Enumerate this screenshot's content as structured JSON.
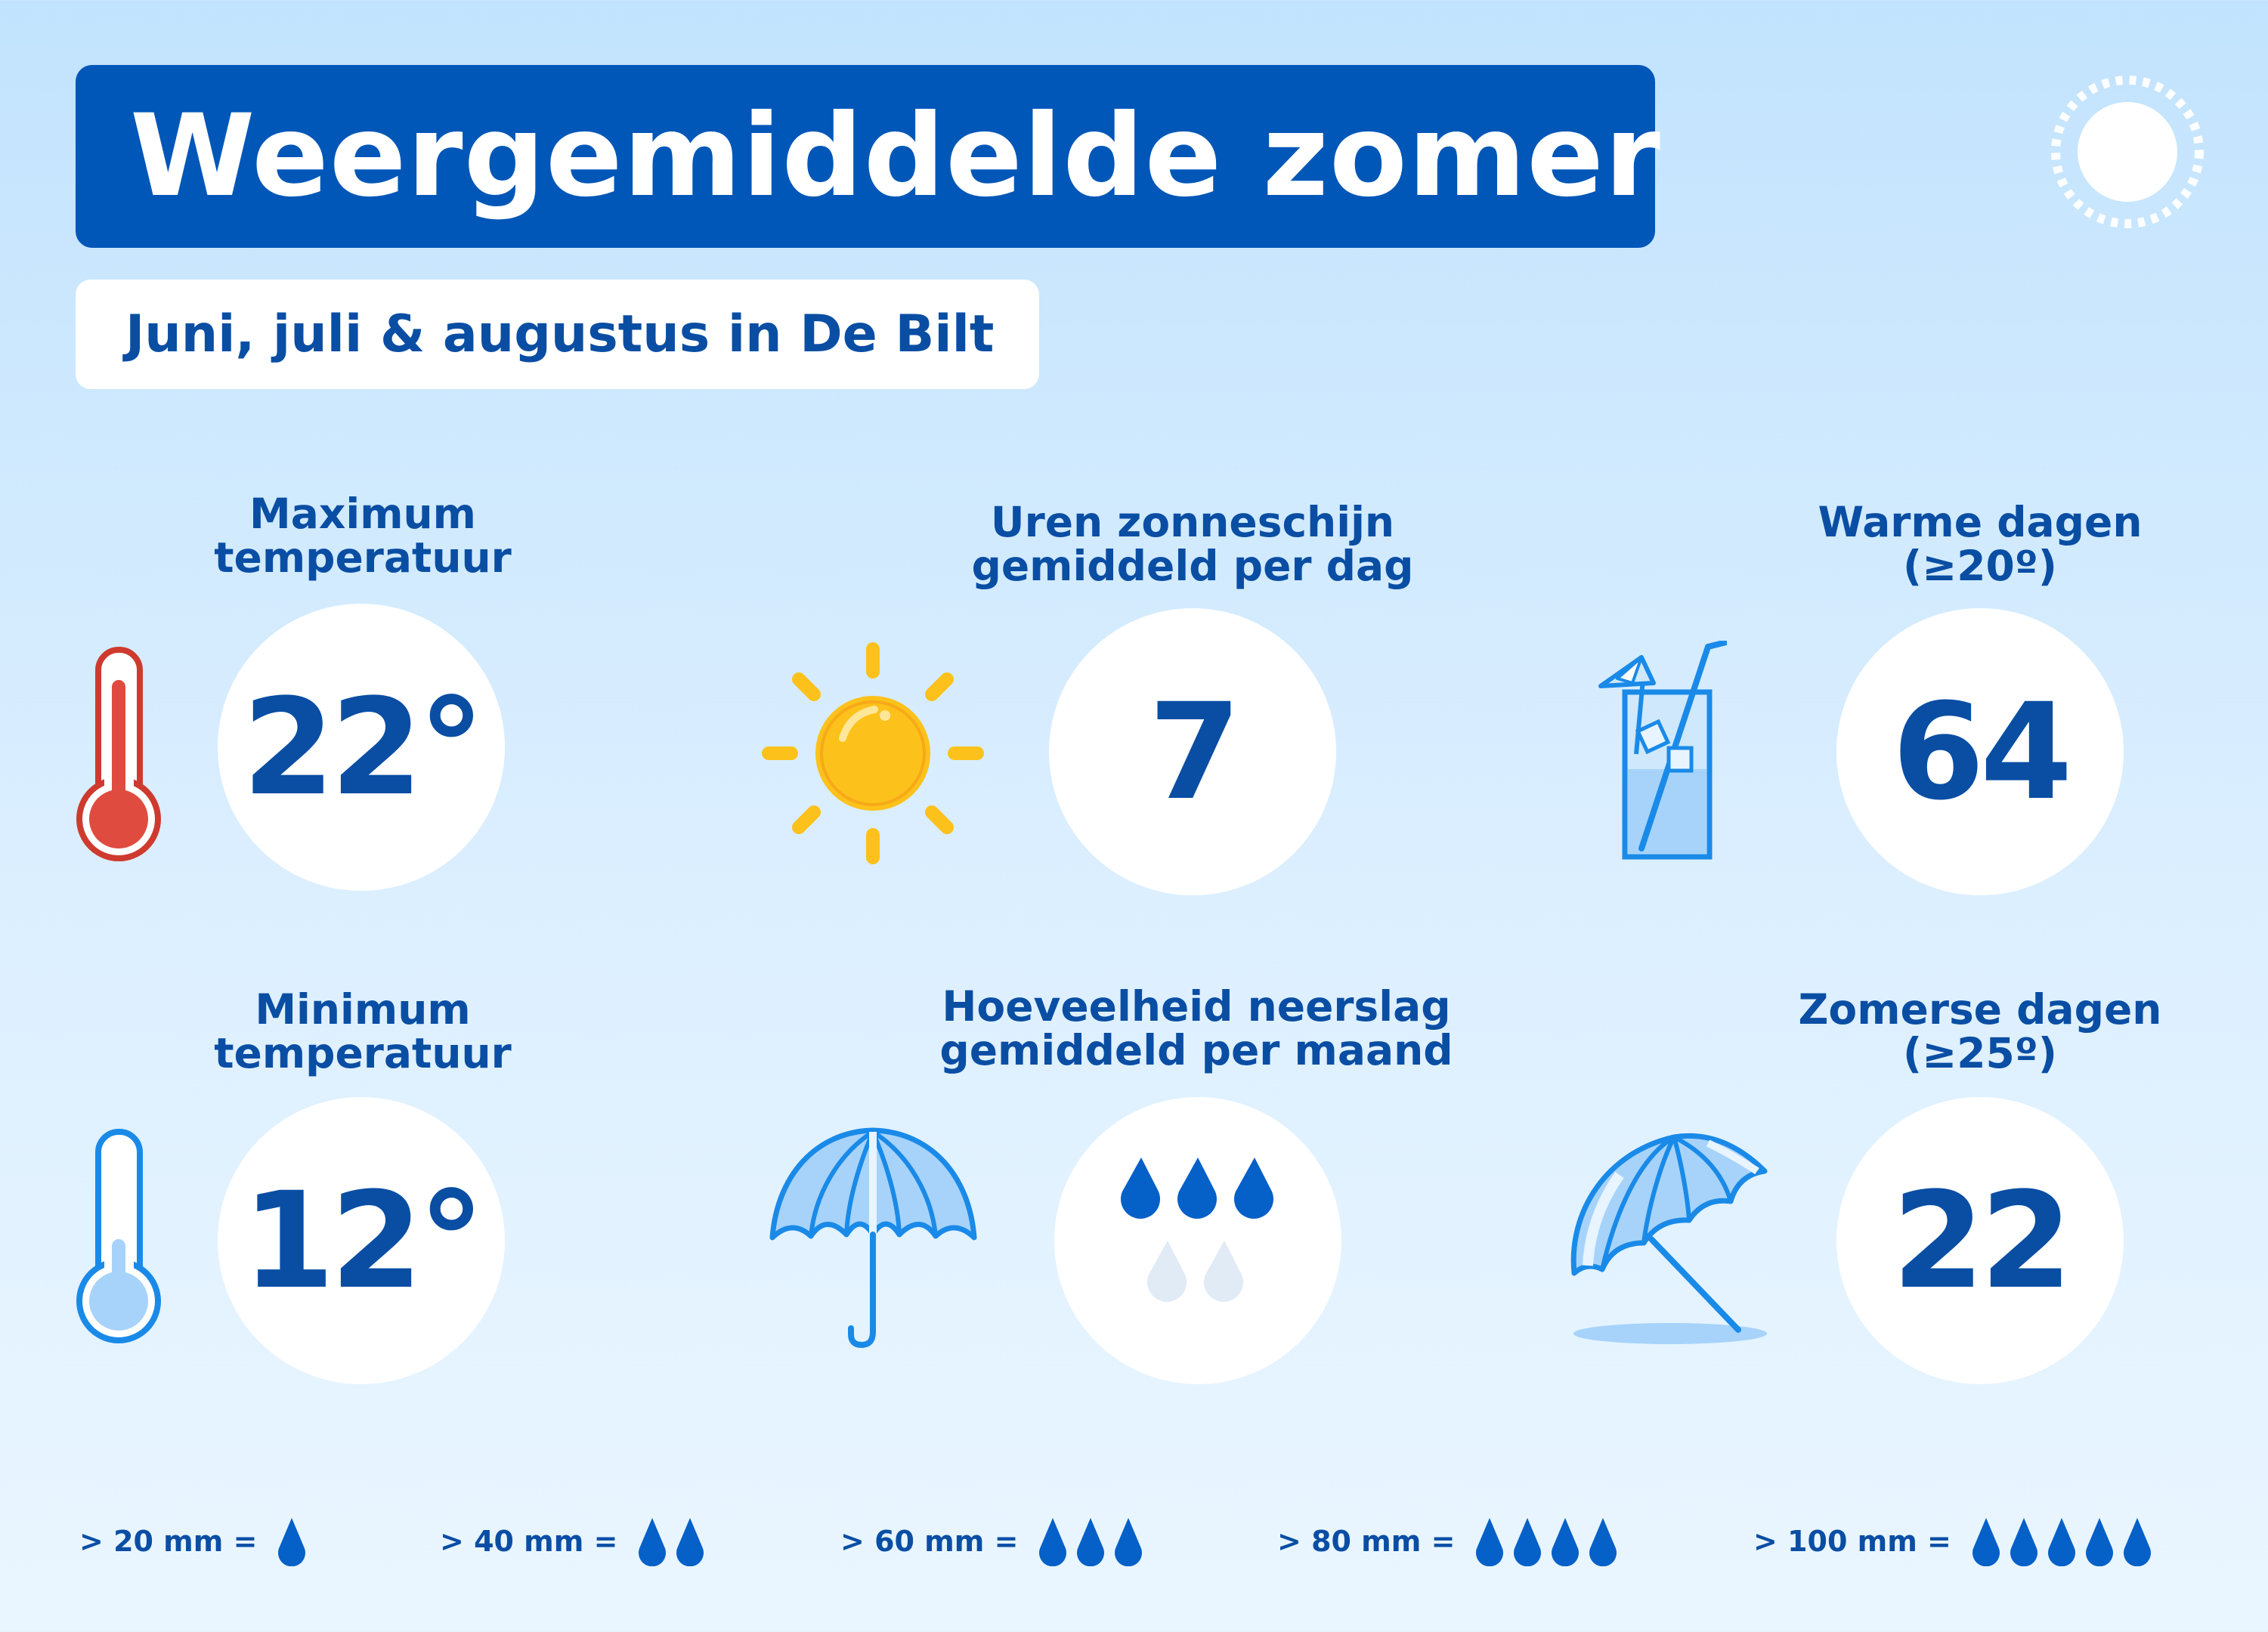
{
  "title": "Weergemiddelde zomer",
  "subtitle": "Juni, juli & augustus in De Bilt",
  "stats": {
    "max_temp": {
      "line1": "Maximum",
      "line2": "temperatuur",
      "value": "22°"
    },
    "sunshine": {
      "line1": "Uren zonneschijn",
      "line2": "gemiddeld per dag",
      "value": "7"
    },
    "warm_days": {
      "line1": "Warme dagen",
      "line2": "(≥20º)",
      "value": "64"
    },
    "min_temp": {
      "line1": "Minimum",
      "line2": "temperatuur",
      "value": "12°"
    },
    "precipitation": {
      "line1": "Hoeveelheid neerslag",
      "line2": "gemiddeld per maand",
      "drops_filled": 3,
      "drops_faded": 2
    },
    "summer_days": {
      "line1": "Zomerse dagen",
      "line2": "(≥25º)",
      "value": "22"
    }
  },
  "legend": [
    {
      "label": "> 20 mm =",
      "drops": 1
    },
    {
      "label": "> 40 mm =",
      "drops": 2
    },
    {
      "label": "> 60 mm =",
      "drops": 3
    },
    {
      "label": "> 80 mm =",
      "drops": 4
    },
    {
      "label": "> 100 mm =",
      "drops": 5
    }
  ],
  "colors": {
    "primary": "#0157b8",
    "text": "#0a4ea4",
    "thermo_red": "#cf3a2f",
    "thermo_blue": "#1a8ae8",
    "sun_yellow": "#fcc21b",
    "drop_blue": "#0560c8",
    "drop_faded": "#e1ebf6"
  },
  "icons": [
    "sun-outline-icon",
    "thermometer-red-icon",
    "sun-icon",
    "drink-glass-icon",
    "thermometer-blue-icon",
    "umbrella-icon",
    "beach-umbrella-icon",
    "raindrop-icon"
  ]
}
